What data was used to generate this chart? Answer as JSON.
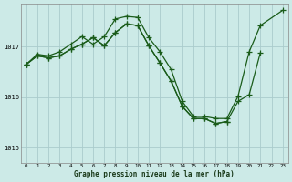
{
  "background_color": "#cceae7",
  "plot_bg_color": "#cceae7",
  "grid_color": "#aacccc",
  "line_color": "#1a5c1a",
  "marker_color": "#1a5c1a",
  "xlabel": "Graphe pression niveau de la mer (hPa)",
  "ylim": [
    1014.7,
    1017.85
  ],
  "xlim": [
    -0.5,
    23.5
  ],
  "yticks": [
    1015,
    1016,
    1017
  ],
  "xticks": [
    0,
    1,
    2,
    3,
    4,
    5,
    6,
    7,
    8,
    9,
    10,
    11,
    12,
    13,
    14,
    15,
    16,
    17,
    18,
    19,
    20,
    21,
    22,
    23
  ],
  "curve1_x": [
    0,
    1,
    2,
    3,
    4,
    5,
    6,
    7,
    8,
    9,
    10,
    11,
    12,
    13,
    14,
    15,
    16,
    17,
    18,
    19,
    20,
    21,
    23
  ],
  "curve1_y": [
    1016.65,
    1016.85,
    1016.82,
    1016.9,
    1017.05,
    1017.2,
    1017.05,
    1017.2,
    1017.55,
    1017.6,
    1017.58,
    1017.18,
    1016.9,
    1016.55,
    1015.92,
    1015.62,
    1015.62,
    1015.58,
    1015.58,
    1016.02,
    1016.9,
    1017.42,
    1017.72
  ],
  "curve2_x": [
    0,
    1,
    2,
    3,
    4,
    5,
    6,
    7,
    8,
    9,
    10,
    11,
    12,
    13,
    14,
    15,
    16,
    17,
    18,
    19,
    20,
    21
  ],
  "curve2_y": [
    1016.65,
    1016.82,
    1016.78,
    1016.82,
    1016.95,
    1017.05,
    1017.18,
    1017.02,
    1017.28,
    1017.45,
    1017.42,
    1017.02,
    1016.68,
    1016.32,
    1015.82,
    1015.58,
    1015.58,
    1015.48,
    1015.52,
    1015.92,
    1016.05,
    1016.88
  ],
  "curve3_x": [
    0,
    1,
    2,
    3,
    4,
    5,
    6,
    7,
    8,
    9,
    10,
    11,
    12,
    13,
    14,
    15,
    16,
    17,
    18
  ],
  "curve3_y": [
    1016.65,
    1016.82,
    1016.78,
    1016.82,
    1016.95,
    1017.05,
    1017.18,
    1017.02,
    1017.28,
    1017.45,
    1017.42,
    1017.02,
    1016.68,
    1016.32,
    1015.82,
    1015.58,
    1015.58,
    1015.48,
    1015.52
  ]
}
